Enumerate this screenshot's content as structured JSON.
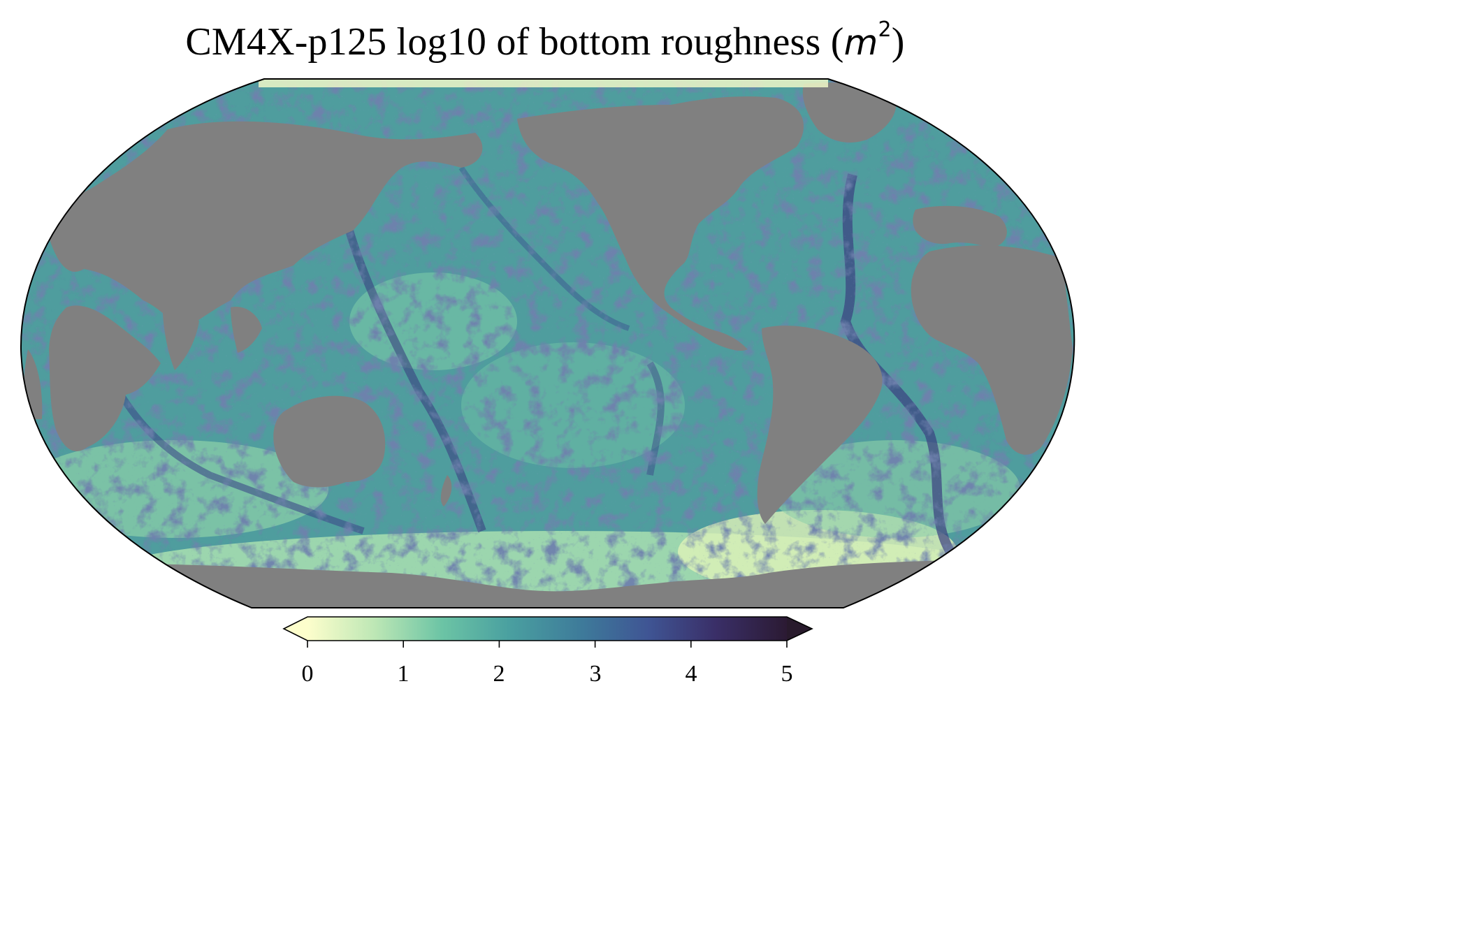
{
  "title": {
    "text": "CM4X-p125 log10 of bottom roughness (",
    "unit_var": "m",
    "unit_exp": "2",
    "close": ")"
  },
  "map": {
    "projection": "Robinson",
    "land_color": "#808080",
    "field": "log10 of bottom roughness"
  },
  "colorbar": {
    "colormap": "deep",
    "colors": [
      "#fdfecc",
      "#a6e1b0",
      "#5fbba3",
      "#3f8f9c",
      "#3e6596",
      "#403f82",
      "#2e2440",
      "#281a2c"
    ],
    "min": 0,
    "max": 5,
    "extend": "both",
    "ticks": [
      "0",
      "1",
      "2",
      "3",
      "4",
      "5"
    ]
  }
}
